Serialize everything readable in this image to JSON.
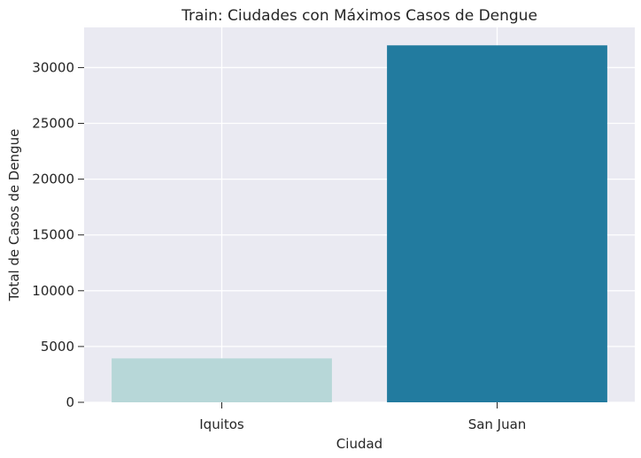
{
  "chart_data": {
    "type": "bar",
    "title": "Train: Ciudades con Máximos Casos de Dengue",
    "xlabel": "Ciudad",
    "ylabel": "Total de Casos de Dengue",
    "categories": [
      "Iquitos",
      "San Juan"
    ],
    "values": [
      3934,
      31993
    ],
    "colors": [
      "#b7d7d8",
      "#227b9f"
    ],
    "ylim": [
      0,
      33600
    ],
    "yticks": [
      0,
      5000,
      10000,
      15000,
      20000,
      25000,
      30000
    ],
    "grid": true,
    "background": "#eaeaf2"
  }
}
